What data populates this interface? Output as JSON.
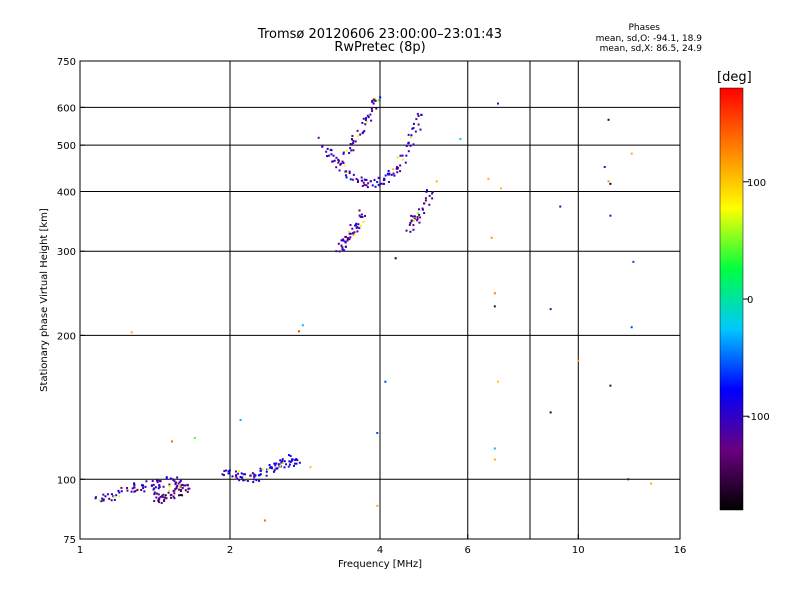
{
  "title": {
    "line1": "Tromsø 20120606 23:00:00–23:01:43",
    "line2": "RwPretec (8p)"
  },
  "phases": {
    "heading": "Phases",
    "o_label": "mean, sd,O: -94.1, 18.9",
    "x_label": "mean, sd,X: 86.5, 24.9"
  },
  "colorbar": {
    "title": "[deg]",
    "ticks": [
      "100",
      "0",
      "-100"
    ],
    "tick_values": [
      100,
      0,
      -100
    ],
    "range": [
      -180,
      180
    ],
    "colors": [
      "#000000",
      "#6a0080",
      "#0000ff",
      "#00c8ff",
      "#00ff40",
      "#ffff00",
      "#ff8000",
      "#ff0000"
    ]
  },
  "chart_data": {
    "type": "scatter",
    "xlabel": "Frequency [MHz]",
    "ylabel": "Stationary phase Virtual Height [km]",
    "xscale": "log",
    "yscale": "log",
    "xlim": [
      1,
      16
    ],
    "ylim": [
      75,
      750
    ],
    "x_ticks": [
      1,
      2,
      4,
      6,
      10,
      16
    ],
    "x_tick_labels": [
      "1",
      "2",
      "4",
      "6",
      "10",
      "16"
    ],
    "y_ticks": [
      75,
      100,
      200,
      300,
      400,
      500,
      600,
      750
    ],
    "y_tick_labels": [
      "75",
      "100",
      "200",
      "300",
      "400",
      "500",
      "600",
      "750"
    ],
    "x_grid": [
      2,
      4,
      6,
      8,
      10
    ],
    "y_grid": [
      100,
      200,
      300,
      400,
      500,
      600
    ],
    "grid": true,
    "clusters": [
      {
        "x": [
          1.07,
          1.14,
          1.22,
          1.3,
          1.38,
          1.46,
          1.54,
          1.62
        ],
        "y": [
          93,
          91,
          94,
          96,
          97,
          98,
          99,
          96
        ],
        "phase": -110
      },
      {
        "x": [
          1.4,
          1.46,
          1.52,
          1.58,
          1.64
        ],
        "y": [
          92,
          91,
          93,
          94,
          97
        ],
        "phase": -130
      },
      {
        "x": [
          1.95,
          2.05,
          2.15,
          2.25,
          2.35,
          2.45,
          2.55,
          2.65,
          2.75
        ],
        "y": [
          104,
          102,
          100,
          101,
          104,
          106,
          108,
          110,
          108
        ],
        "phase": -95
      },
      {
        "x": [
          3.05,
          3.25,
          3.45,
          3.65,
          3.85,
          4.05,
          4.25,
          4.45,
          4.65,
          4.8
        ],
        "y": [
          510,
          470,
          440,
          425,
          415,
          420,
          440,
          470,
          520,
          570
        ],
        "phase": -100
      },
      {
        "x": [
          3.3,
          3.5,
          3.7,
          3.85,
          3.95
        ],
        "y": [
          460,
          500,
          540,
          590,
          630
        ],
        "phase": -115
      },
      {
        "x": [
          3.3,
          3.4,
          3.5,
          3.6,
          3.7
        ],
        "y": [
          300,
          310,
          325,
          340,
          360
        ],
        "phase": -110
      },
      {
        "x": [
          4.5,
          4.7,
          4.9,
          5.05
        ],
        "y": [
          330,
          350,
          370,
          395
        ],
        "phase": -120
      }
    ],
    "outliers": [
      {
        "x": 1.27,
        "y": 203,
        "phase": 110
      },
      {
        "x": 1.53,
        "y": 120,
        "phase": 140
      },
      {
        "x": 1.7,
        "y": 122,
        "phase": 40
      },
      {
        "x": 2.1,
        "y": 133,
        "phase": -30
      },
      {
        "x": 2.75,
        "y": 204,
        "phase": 160
      },
      {
        "x": 2.8,
        "y": 210,
        "phase": -30
      },
      {
        "x": 2.35,
        "y": 82,
        "phase": 140
      },
      {
        "x": 2.9,
        "y": 106,
        "phase": 100
      },
      {
        "x": 3.95,
        "y": 125,
        "phase": -60
      },
      {
        "x": 3.95,
        "y": 88,
        "phase": 110
      },
      {
        "x": 4.1,
        "y": 160,
        "phase": -60
      },
      {
        "x": 4.3,
        "y": 290,
        "phase": -170
      },
      {
        "x": 5.2,
        "y": 420,
        "phase": 110
      },
      {
        "x": 5.8,
        "y": 515,
        "phase": -20
      },
      {
        "x": 6.6,
        "y": 425,
        "phase": 110
      },
      {
        "x": 6.7,
        "y": 320,
        "phase": 120
      },
      {
        "x": 6.8,
        "y": 230,
        "phase": -150
      },
      {
        "x": 6.8,
        "y": 245,
        "phase": 130
      },
      {
        "x": 6.9,
        "y": 611,
        "phase": -120
      },
      {
        "x": 6.9,
        "y": 160,
        "phase": 100
      },
      {
        "x": 6.8,
        "y": 116,
        "phase": -30
      },
      {
        "x": 6.8,
        "y": 110,
        "phase": 110
      },
      {
        "x": 7.0,
        "y": 406,
        "phase": 105
      },
      {
        "x": 8.8,
        "y": 227,
        "phase": -120
      },
      {
        "x": 8.8,
        "y": 138,
        "phase": -160
      },
      {
        "x": 9.2,
        "y": 372,
        "phase": -110
      },
      {
        "x": 10.0,
        "y": 177,
        "phase": 110
      },
      {
        "x": 11.5,
        "y": 565,
        "phase": -160
      },
      {
        "x": 11.3,
        "y": 450,
        "phase": -110
      },
      {
        "x": 11.5,
        "y": 420,
        "phase": 120
      },
      {
        "x": 11.6,
        "y": 415,
        "phase": -170
      },
      {
        "x": 11.6,
        "y": 356,
        "phase": -120
      },
      {
        "x": 11.6,
        "y": 157,
        "phase": -150
      },
      {
        "x": 12.6,
        "y": 100,
        "phase": -140
      },
      {
        "x": 12.8,
        "y": 480,
        "phase": 110
      },
      {
        "x": 12.9,
        "y": 285,
        "phase": -60
      },
      {
        "x": 12.8,
        "y": 208,
        "phase": -60
      },
      {
        "x": 14.0,
        "y": 98,
        "phase": 110
      }
    ]
  }
}
